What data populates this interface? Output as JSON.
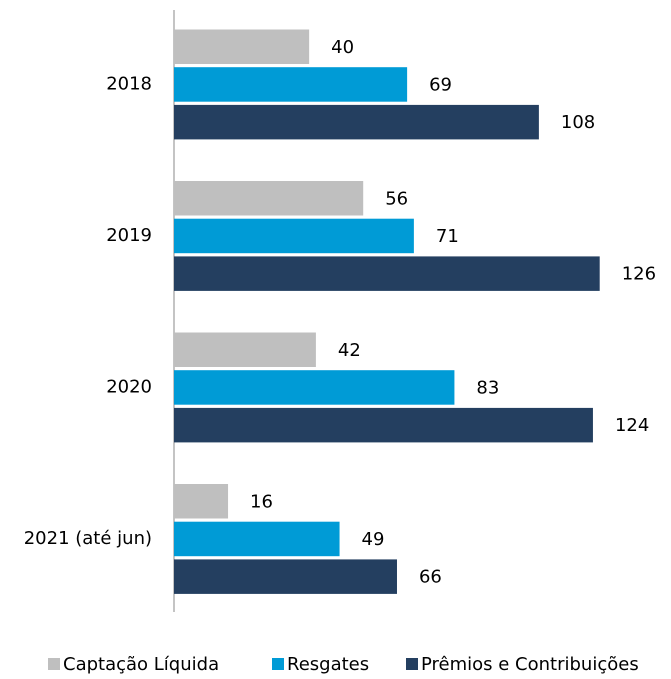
{
  "chart_data": {
    "type": "barh",
    "categories": [
      "2018",
      "2019",
      "2020",
      "2021 (até jun)"
    ],
    "series": [
      {
        "name": "Captação Líquida",
        "color": "#bfbfbf",
        "label_color": "#666666",
        "values": [
          40,
          56,
          42,
          16
        ]
      },
      {
        "name": "Resgates",
        "color": "#009bd6",
        "label_color": "#1a9bd7",
        "values": [
          69,
          71,
          83,
          49
        ]
      },
      {
        "name": "Prêmios e Contribuições",
        "color": "#243f60",
        "label_color": "#243f60",
        "values": [
          108,
          126,
          124,
          66
        ]
      }
    ],
    "xlim": [
      0,
      140
    ],
    "legend": "bottom"
  }
}
